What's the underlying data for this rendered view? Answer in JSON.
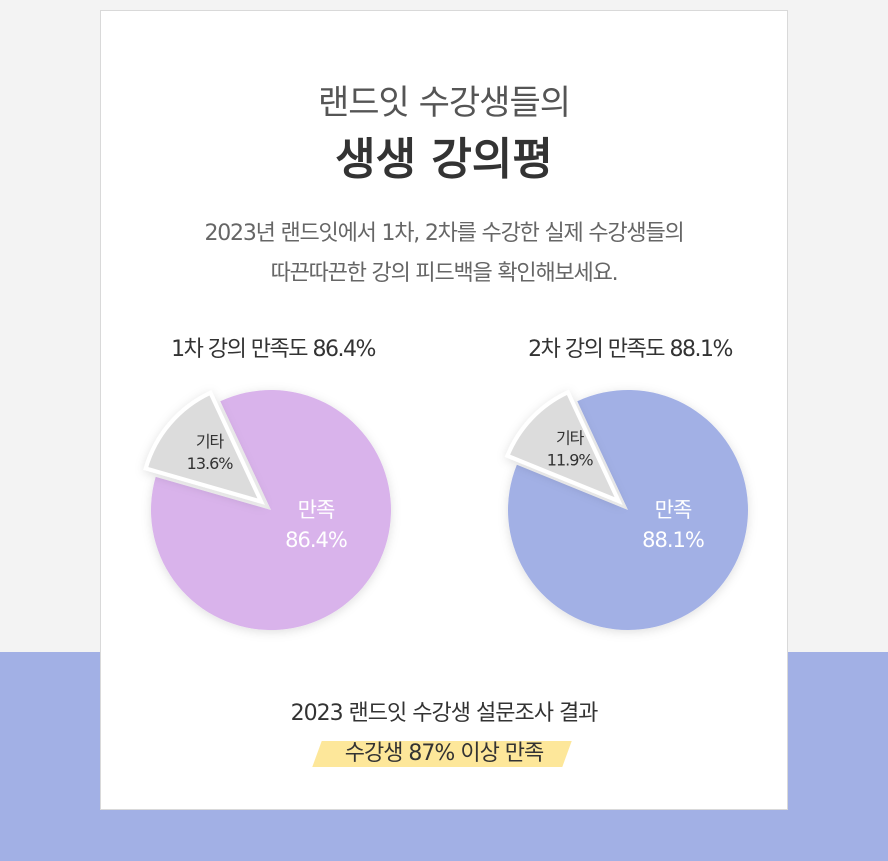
{
  "heading": {
    "line1": "랜드잇 수강생들의",
    "line2": "생생 강의평"
  },
  "description": {
    "line1": "2023년 랜드잇에서 1차, 2차를 수강한 실제 수강생들의",
    "line2": "따끈따끈한 강의 피드백을 확인해보세요."
  },
  "colors": {
    "pie1_main": "#d9b3eb",
    "pie2_main": "#a2b0e5",
    "other": "#dcdcdc",
    "band": "#a2b0e5",
    "highlight": "#fde79a"
  },
  "chart_data": [
    {
      "type": "pie",
      "title": "1차 강의 만족도 86.4%",
      "slices": [
        {
          "label": "만족",
          "value": 86.4,
          "display": "86.4%"
        },
        {
          "label": "기타",
          "value": 13.6,
          "display": "13.6%"
        }
      ]
    },
    {
      "type": "pie",
      "title": "2차 강의 만족도 88.1%",
      "slices": [
        {
          "label": "만족",
          "value": 88.1,
          "display": "88.1%"
        },
        {
          "label": "기타",
          "value": 11.9,
          "display": "11.9%"
        }
      ]
    }
  ],
  "summary": {
    "line1": "2023 랜드잇 수강생 설문조사 결과",
    "line2": "수강생 87% 이상 만족"
  }
}
